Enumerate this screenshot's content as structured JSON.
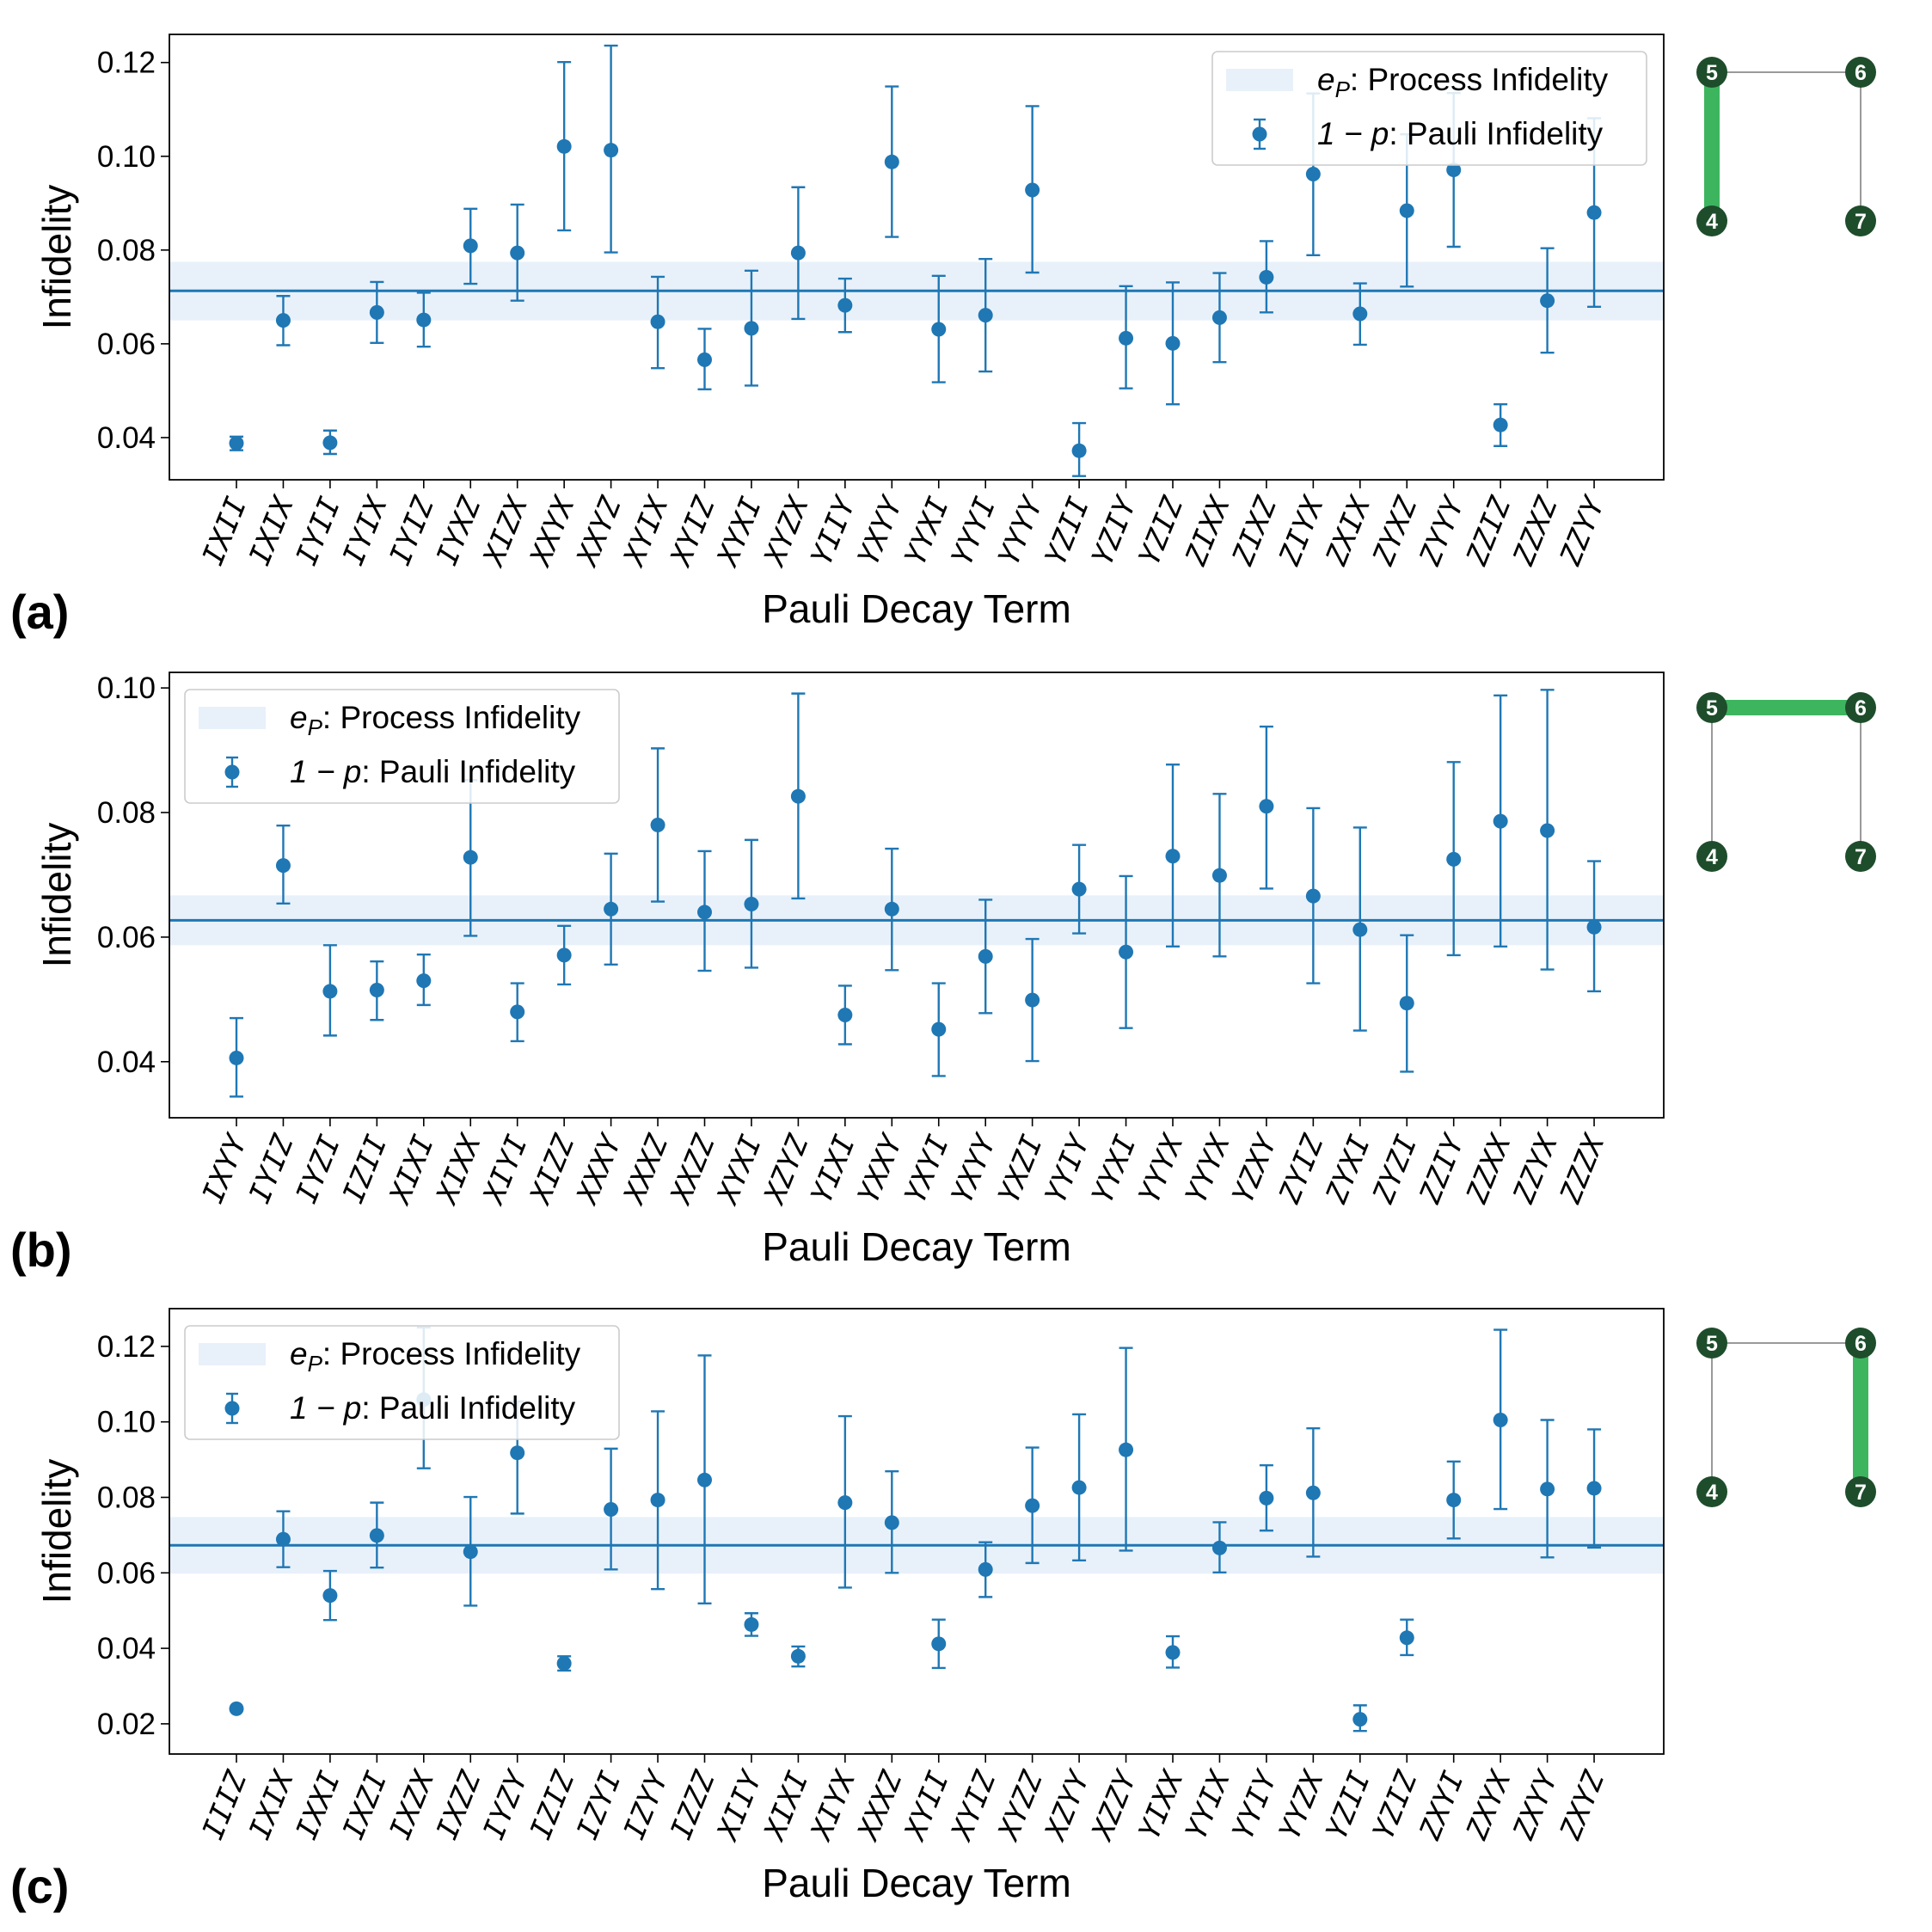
{
  "colors": {
    "series": "#1f77b4",
    "band": "#e8f1fa",
    "edge": "#9a9a9a",
    "active_edge": "#3db55f",
    "qubit": "#1e4d2b",
    "frame": "#000000"
  },
  "legend_entries": {
    "process": ": Process Infidelity",
    "process_symbol": "e",
    "process_sub": "P",
    "pauli": ": Pauli Infidelity",
    "pauli_symbol": "1 − p"
  },
  "chart_data": [
    {
      "type": "scatter",
      "panel_label": "(a)",
      "xlabel": "Pauli Decay Term",
      "ylabel": "Infidelity",
      "ylim": [
        0.031,
        0.126
      ],
      "yticks": [
        0.04,
        0.06,
        0.08,
        0.1,
        0.12
      ],
      "ytick_labels": [
        "0.04",
        "0.06",
        "0.08",
        "0.10",
        "0.12"
      ],
      "legend_position": "top-right",
      "process_infidelity": 0.0713,
      "process_band": [
        0.065,
        0.0775
      ],
      "categories": [
        "IXII",
        "IXIX",
        "IYII",
        "IYIX",
        "IYIZ",
        "IYXZ",
        "XIZX",
        "XXYX",
        "XXYZ",
        "XYIX",
        "XYIZ",
        "XYXI",
        "XYZX",
        "YIIY",
        "YXYY",
        "YYXI",
        "YYYI",
        "YYYY",
        "YZII",
        "YZIY",
        "YZIZ",
        "ZIXX",
        "ZIXZ",
        "ZIYX",
        "ZXIX",
        "ZYXZ",
        "ZYYY",
        "ZZIZ",
        "ZZXZ",
        "ZZYY"
      ],
      "values": [
        0.0388,
        0.065,
        0.0389,
        0.0667,
        0.0651,
        0.0809,
        0.0794,
        0.1021,
        0.1013,
        0.0647,
        0.0566,
        0.0633,
        0.0794,
        0.0682,
        0.0988,
        0.0631,
        0.0661,
        0.0928,
        0.0372,
        0.0612,
        0.0601,
        0.0656,
        0.0742,
        0.0962,
        0.0664,
        0.0884,
        0.0971,
        0.0427,
        0.0692,
        0.088
      ],
      "err_low": [
        0.0373,
        0.0597,
        0.0365,
        0.0602,
        0.0594,
        0.0728,
        0.0692,
        0.0842,
        0.0795,
        0.0548,
        0.0503,
        0.0511,
        0.0653,
        0.0625,
        0.0828,
        0.0518,
        0.0541,
        0.0752,
        0.0318,
        0.0505,
        0.0471,
        0.0561,
        0.0667,
        0.0789,
        0.0598,
        0.0722,
        0.0807,
        0.0382,
        0.0581,
        0.0679
      ],
      "err_high": [
        0.0402,
        0.0702,
        0.0415,
        0.0732,
        0.0709,
        0.0888,
        0.0897,
        0.1201,
        0.1236,
        0.0743,
        0.0632,
        0.0756,
        0.0934,
        0.0739,
        0.1149,
        0.0745,
        0.0781,
        0.1107,
        0.0431,
        0.0723,
        0.0731,
        0.0751,
        0.0819,
        0.1134,
        0.0729,
        0.1047,
        0.1135,
        0.0471,
        0.0804,
        0.1081
      ],
      "coupling": {
        "qubits": [
          "5",
          "6",
          "4",
          "7"
        ],
        "active": [
          "5",
          "4"
        ]
      }
    },
    {
      "type": "scatter",
      "panel_label": "(b)",
      "xlabel": "Pauli Decay Term",
      "ylabel": "Infidelity",
      "ylim": [
        0.031,
        0.1025
      ],
      "yticks": [
        0.04,
        0.06,
        0.08,
        0.1
      ],
      "ytick_labels": [
        "0.04",
        "0.06",
        "0.08",
        "0.10"
      ],
      "legend_position": "top-left",
      "process_infidelity": 0.0627,
      "process_band": [
        0.0587,
        0.0667
      ],
      "categories": [
        "IXYY",
        "IYIZ",
        "IYZI",
        "IZII",
        "XIXI",
        "XIXX",
        "XIYI",
        "XIZZ",
        "XXXY",
        "XXXZ",
        "XXZZ",
        "XYXI",
        "XZYZ",
        "YIXI",
        "YXXY",
        "YXYI",
        "YXYY",
        "YXZI",
        "YYIY",
        "YYXI",
        "YYYX",
        "YYYX",
        "YZXY",
        "ZYIZ",
        "ZYXI",
        "ZYZI",
        "ZZIY",
        "ZZXX",
        "ZZYX",
        "ZZZX"
      ],
      "values": [
        0.0406,
        0.0715,
        0.0513,
        0.0515,
        0.053,
        0.0728,
        0.048,
        0.0571,
        0.0645,
        0.078,
        0.064,
        0.0653,
        0.0826,
        0.0475,
        0.0645,
        0.0452,
        0.0569,
        0.0499,
        0.0677,
        0.0576,
        0.073,
        0.0699,
        0.081,
        0.0666,
        0.0612,
        0.0494,
        0.0725,
        0.0786,
        0.0771,
        0.0616
      ],
      "err_low": [
        0.0344,
        0.0654,
        0.0442,
        0.0467,
        0.0491,
        0.0602,
        0.0433,
        0.0524,
        0.0556,
        0.0657,
        0.0546,
        0.0551,
        0.0662,
        0.0428,
        0.0547,
        0.0377,
        0.0478,
        0.0401,
        0.0606,
        0.0454,
        0.0585,
        0.0569,
        0.0678,
        0.0526,
        0.045,
        0.0384,
        0.0571,
        0.0585,
        0.0548,
        0.0513
      ],
      "err_high": [
        0.047,
        0.0779,
        0.0587,
        0.0561,
        0.0572,
        0.0852,
        0.0526,
        0.0618,
        0.0734,
        0.0903,
        0.0738,
        0.0756,
        0.0991,
        0.0522,
        0.0742,
        0.0526,
        0.066,
        0.0597,
        0.0748,
        0.0698,
        0.0877,
        0.083,
        0.0938,
        0.0807,
        0.0776,
        0.0603,
        0.0881,
        0.0988,
        0.0997,
        0.0722
      ],
      "coupling": {
        "qubits": [
          "5",
          "6",
          "4",
          "7"
        ],
        "active": [
          "5",
          "6"
        ]
      }
    },
    {
      "type": "scatter",
      "panel_label": "(c)",
      "xlabel": "Pauli Decay Term",
      "ylabel": "Infidelity",
      "ylim": [
        0.012,
        0.13
      ],
      "yticks": [
        0.02,
        0.04,
        0.06,
        0.08,
        0.1,
        0.12
      ],
      "ytick_labels": [
        "0.02",
        "0.04",
        "0.06",
        "0.08",
        "0.10",
        "0.12"
      ],
      "legend_position": "top-left",
      "process_infidelity": 0.0673,
      "process_band": [
        0.0598,
        0.0748
      ],
      "categories": [
        "IIIZ",
        "IXIX",
        "IXXI",
        "IXZI",
        "IXZX",
        "IXZZ",
        "IYZY",
        "IZIZ",
        "IZYI",
        "IZYY",
        "IZZZ",
        "XIIY",
        "XIXI",
        "XIYX",
        "XXXZ",
        "XYII",
        "XYIZ",
        "XYZZ",
        "XZYY",
        "XZZY",
        "YIXX",
        "YYIX",
        "YYIY",
        "YYZX",
        "YZII",
        "YZIZ",
        "ZXYI",
        "ZXYX",
        "ZXYY",
        "ZXYZ"
      ],
      "values": [
        0.024,
        0.0689,
        0.054,
        0.0699,
        0.1059,
        0.0656,
        0.0918,
        0.036,
        0.0768,
        0.0793,
        0.0846,
        0.0463,
        0.0379,
        0.0786,
        0.0733,
        0.0412,
        0.0609,
        0.0778,
        0.0826,
        0.0926,
        0.0389,
        0.0666,
        0.0798,
        0.0812,
        0.0212,
        0.0428,
        0.0793,
        0.1005,
        0.0822,
        0.0824
      ],
      "err_low": [
        0.024,
        0.0615,
        0.0475,
        0.0614,
        0.0877,
        0.0513,
        0.0757,
        0.0341,
        0.0609,
        0.0557,
        0.0519,
        0.0433,
        0.0352,
        0.0561,
        0.06,
        0.0348,
        0.0536,
        0.0626,
        0.0633,
        0.0659,
        0.0349,
        0.0601,
        0.0712,
        0.0643,
        0.0181,
        0.0382,
        0.0691,
        0.0769,
        0.0641,
        0.0667
      ],
      "err_high": [
        0.024,
        0.0763,
        0.0605,
        0.0786,
        0.125,
        0.0801,
        0.1054,
        0.0379,
        0.0929,
        0.1028,
        0.1176,
        0.0493,
        0.0405,
        0.1015,
        0.0869,
        0.0476,
        0.0681,
        0.0932,
        0.102,
        0.1196,
        0.0432,
        0.0734,
        0.0885,
        0.0983,
        0.0249,
        0.0476,
        0.0895,
        0.1244,
        0.1005,
        0.098
      ],
      "coupling": {
        "qubits": [
          "5",
          "6",
          "4",
          "7"
        ],
        "active": [
          "6",
          "7"
        ]
      }
    }
  ]
}
